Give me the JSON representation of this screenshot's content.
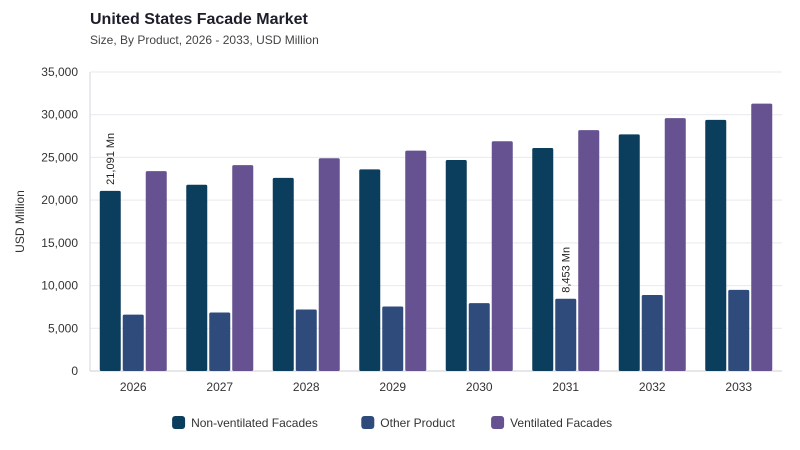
{
  "chart_data": {
    "type": "bar",
    "title": "United States Facade Market",
    "subtitle": "Size, By Product, 2026 - 2033, USD Million",
    "xlabel": "",
    "ylabel": "USD Million",
    "ylim": [
      0,
      35000
    ],
    "yticks": [
      0,
      5000,
      10000,
      15000,
      20000,
      25000,
      30000,
      35000
    ],
    "ytick_labels": [
      "0",
      "5,000",
      "10,000",
      "15,000",
      "20,000",
      "25,000",
      "30,000",
      "35,000"
    ],
    "grid": true,
    "legend_position": "bottom",
    "categories": [
      "2026",
      "2027",
      "2028",
      "2029",
      "2030",
      "2031",
      "2032",
      "2033"
    ],
    "series": [
      {
        "name": "Non-ventilated Facades",
        "color": "#0b3d5c",
        "values": [
          21091,
          21800,
          22600,
          23600,
          24700,
          26100,
          27700,
          29400
        ]
      },
      {
        "name": "Other Product",
        "color": "#2f4b7c",
        "values": [
          6600,
          6850,
          7200,
          7550,
          7950,
          8453,
          8900,
          9500
        ]
      },
      {
        "name": "Ventilated Facades",
        "color": "#665191",
        "values": [
          23400,
          24100,
          24900,
          25800,
          26900,
          28200,
          29600,
          31300
        ]
      }
    ],
    "annotations": [
      {
        "series": 0,
        "category": "2026",
        "text": "21,091 Mn"
      },
      {
        "series": 1,
        "category": "2031",
        "text": "8,453 Mn"
      }
    ]
  }
}
